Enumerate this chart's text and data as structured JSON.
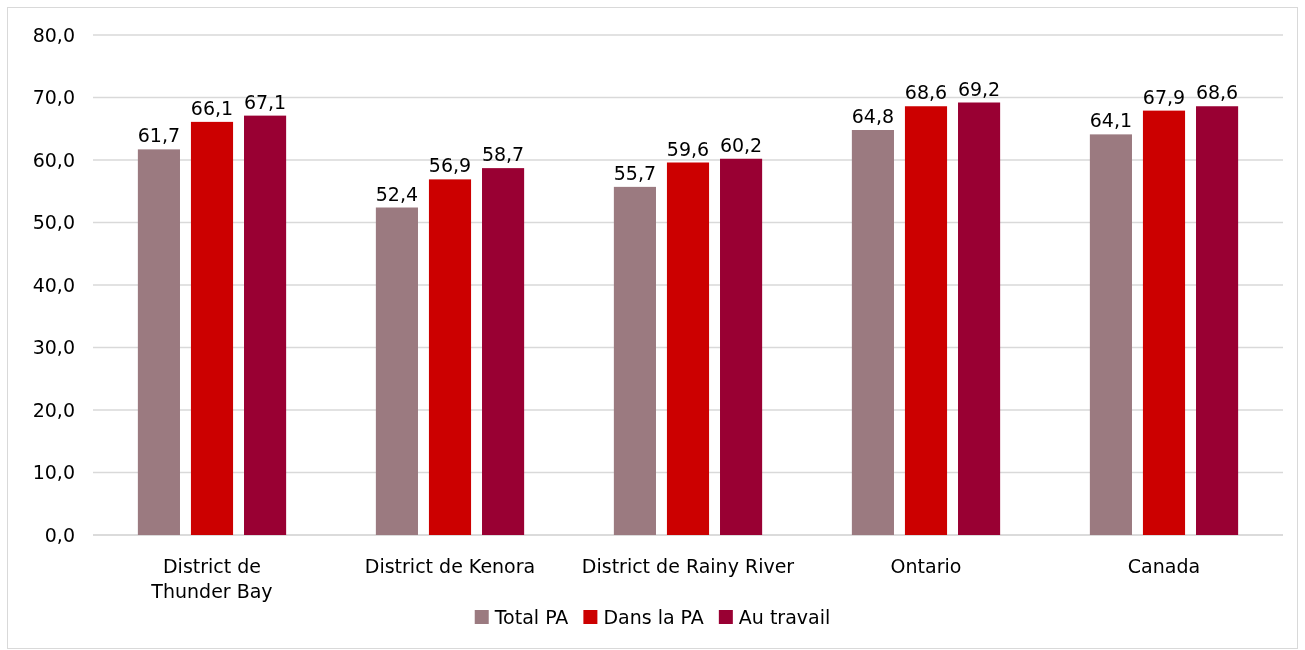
{
  "chart_data": {
    "type": "bar",
    "categories": [
      "District de Thunder Bay",
      "District de Kenora",
      "District de Rainy River",
      "Ontario",
      "Canada"
    ],
    "series": [
      {
        "name": "Total PA",
        "color": "#9b7a80",
        "values": [
          61.7,
          52.4,
          55.7,
          64.8,
          64.1
        ],
        "value_labels": [
          "61,7",
          "52,4",
          "55,7",
          "64,8",
          "64,1"
        ]
      },
      {
        "name": "Dans la PA",
        "color": "#cc0000",
        "values": [
          66.1,
          56.9,
          59.6,
          68.6,
          67.9
        ],
        "value_labels": [
          "66,1",
          "56,9",
          "59,6",
          "68,6",
          "67,9"
        ]
      },
      {
        "name": "Au travail",
        "color": "#990033",
        "values": [
          67.1,
          58.7,
          60.2,
          69.2,
          68.6
        ],
        "value_labels": [
          "67,1",
          "58,7",
          "60,2",
          "69,2",
          "68,6"
        ]
      }
    ],
    "ylim": [
      0,
      80
    ],
    "yticks": [
      {
        "value": 0,
        "label": "0,0"
      },
      {
        "value": 10,
        "label": "10,0"
      },
      {
        "value": 20,
        "label": "20,0"
      },
      {
        "value": 30,
        "label": "30,0"
      },
      {
        "value": 40,
        "label": "40,0"
      },
      {
        "value": 50,
        "label": "50,0"
      },
      {
        "value": 60,
        "label": "60,0"
      },
      {
        "value": 70,
        "label": "70,0"
      },
      {
        "value": 80,
        "label": "80,0"
      }
    ],
    "grid": "y",
    "legend": "bottom"
  }
}
